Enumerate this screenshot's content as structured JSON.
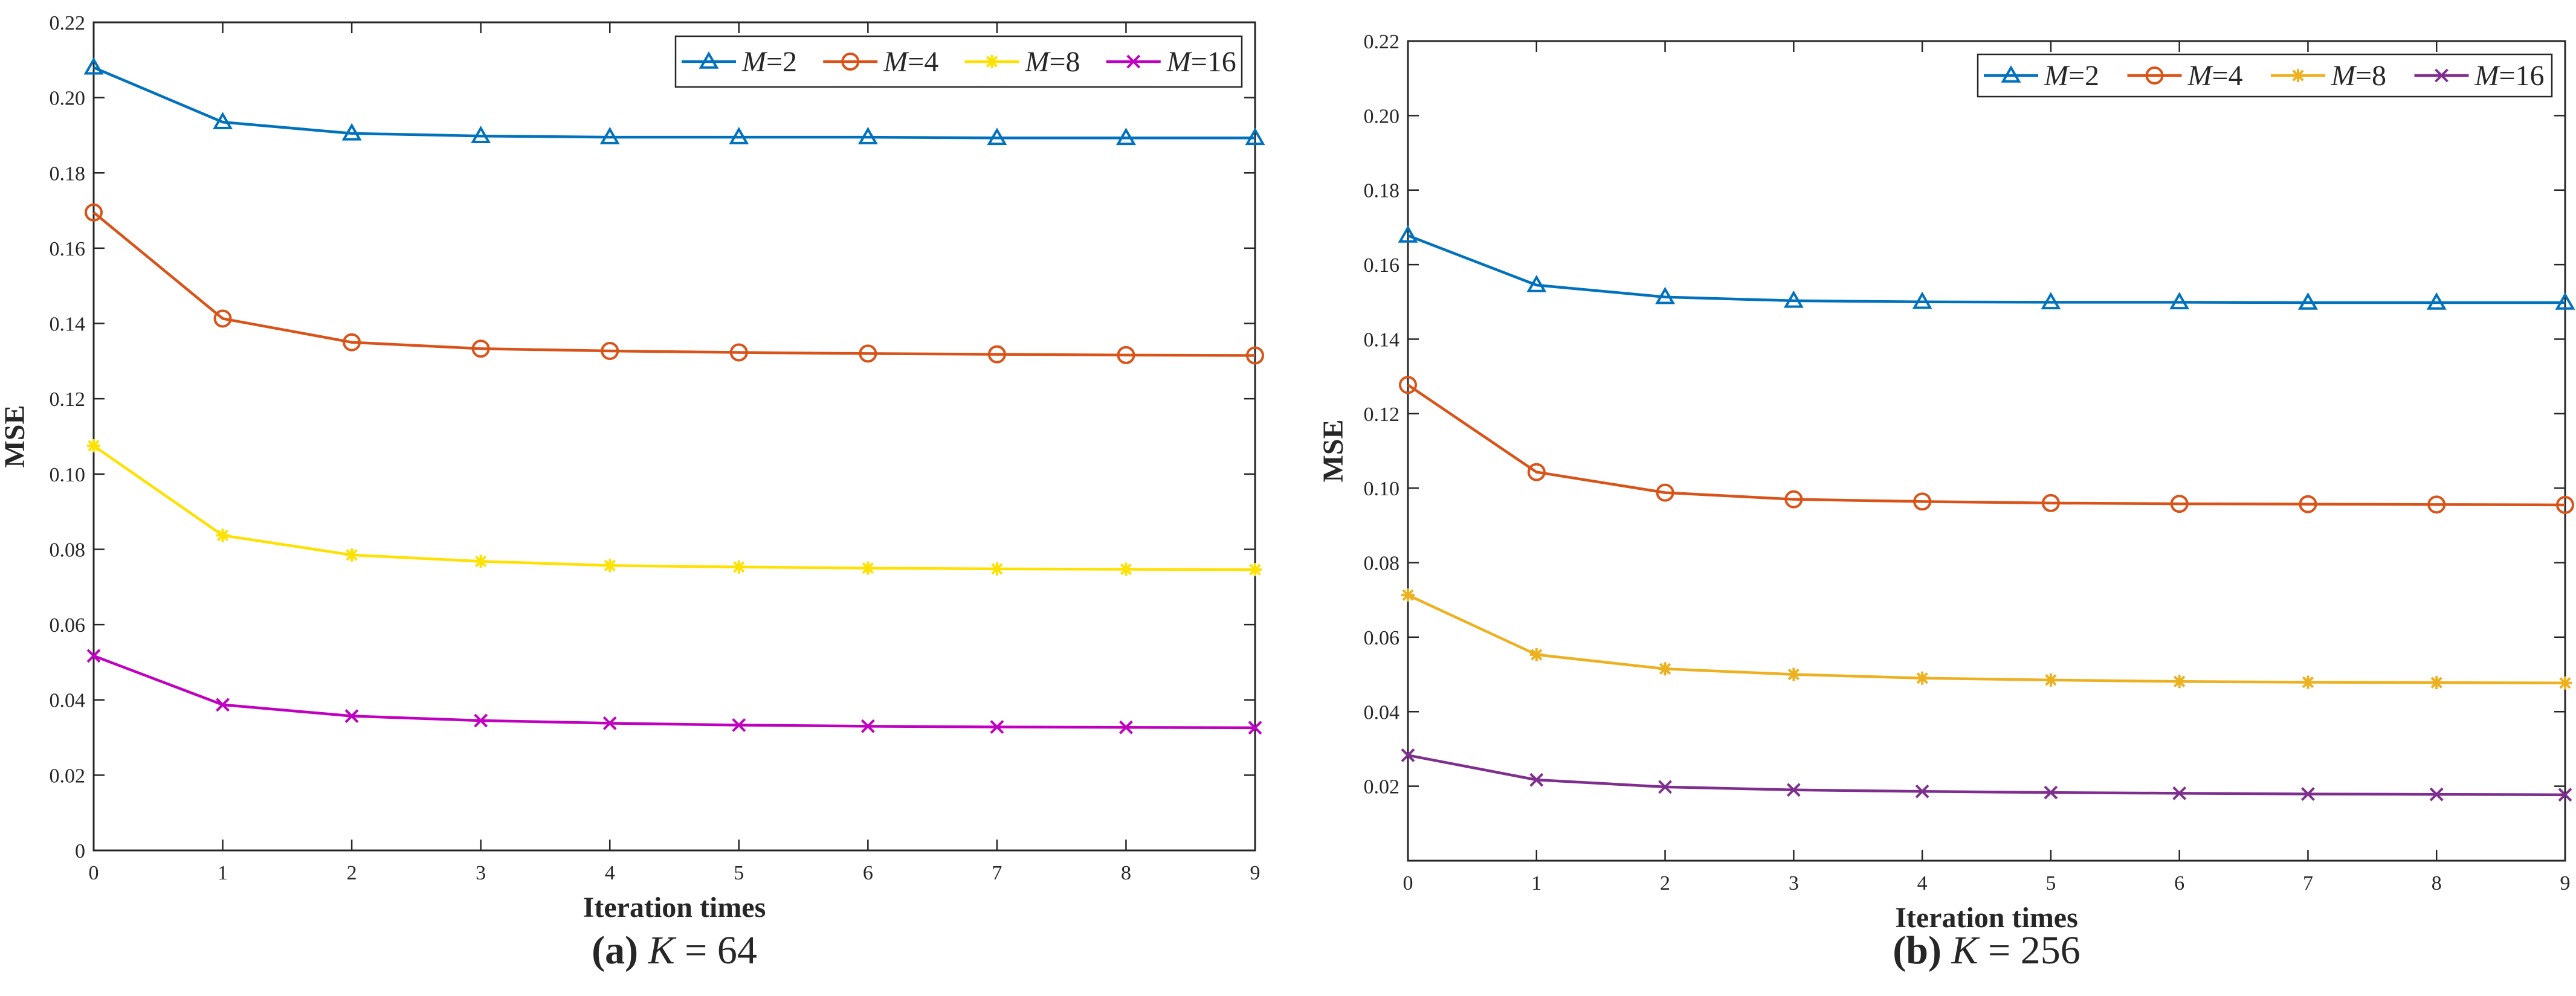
{
  "chart_data": [
    {
      "type": "line",
      "xlabel": "Iteration times",
      "ylabel": "MSE",
      "xlim": [
        0,
        9
      ],
      "ylim": [
        0,
        0.22
      ],
      "xticks": [
        0,
        1,
        2,
        3,
        4,
        5,
        6,
        7,
        8,
        9
      ],
      "yticks": [
        0,
        0.02,
        0.04,
        0.06,
        0.08,
        0.1,
        0.12,
        0.14,
        0.16,
        0.18,
        0.2,
        0.22
      ],
      "ytick_labels": [
        "0",
        "0.02",
        "0.04",
        "0.06",
        "0.08",
        "0.10",
        "0.12",
        "0.14",
        "0.16",
        "0.18",
        "0.20",
        "0.22"
      ],
      "legend_position": "top-right",
      "caption": {
        "letter": "(a)",
        "variable": "K",
        "rest": " = 64"
      },
      "x": [
        0,
        1,
        2,
        3,
        4,
        5,
        6,
        7,
        8,
        9
      ],
      "series": [
        {
          "name": "=2",
          "legend_italic": "M",
          "color": "#0072BD",
          "marker": "triangle",
          "values": [
            0.208,
            0.1935,
            0.1905,
            0.1898,
            0.1895,
            0.1895,
            0.1895,
            0.1893,
            0.1893,
            0.1893
          ]
        },
        {
          "name": "=4",
          "legend_italic": "M",
          "color": "#D95319",
          "marker": "circle",
          "values": [
            0.1695,
            0.1413,
            0.135,
            0.1333,
            0.1327,
            0.1323,
            0.132,
            0.1318,
            0.1316,
            0.1315
          ]
        },
        {
          "name": "=8",
          "legend_italic": "M",
          "color": "#FFE100",
          "marker": "asterisk",
          "values": [
            0.1075,
            0.0837,
            0.0785,
            0.0768,
            0.0757,
            0.0753,
            0.075,
            0.0748,
            0.0747,
            0.0746
          ]
        },
        {
          "name": "=16",
          "legend_italic": "M",
          "color": "#C000C0",
          "marker": "x",
          "values": [
            0.0517,
            0.0387,
            0.0357,
            0.0345,
            0.0338,
            0.0333,
            0.033,
            0.0328,
            0.0327,
            0.0326
          ]
        }
      ]
    },
    {
      "type": "line",
      "xlabel": "Iteration times",
      "ylabel": "MSE",
      "xlim": [
        0,
        9
      ],
      "ylim": [
        0,
        0.22
      ],
      "xticks": [
        0,
        1,
        2,
        3,
        4,
        5,
        6,
        7,
        8,
        9
      ],
      "yticks": [
        0.02,
        0.04,
        0.06,
        0.08,
        0.1,
        0.12,
        0.14,
        0.16,
        0.18,
        0.2,
        0.22
      ],
      "ytick_labels": [
        "0.02",
        "0.04",
        "0.06",
        "0.08",
        "0.10",
        "0.12",
        "0.14",
        "0.16",
        "0.18",
        "0.20",
        "0.22"
      ],
      "legend_position": "top-right",
      "caption": {
        "letter": "(b)",
        "variable": "K",
        "rest": " = 256"
      },
      "x": [
        0,
        1,
        2,
        3,
        4,
        5,
        6,
        7,
        8,
        9
      ],
      "series": [
        {
          "name": "=2",
          "legend_italic": "M",
          "color": "#0072BD",
          "marker": "triangle",
          "values": [
            0.1678,
            0.1545,
            0.1513,
            0.1503,
            0.15,
            0.1499,
            0.1499,
            0.1498,
            0.1498,
            0.1498
          ]
        },
        {
          "name": "=4",
          "legend_italic": "M",
          "color": "#D95319",
          "marker": "circle",
          "values": [
            0.1277,
            0.1043,
            0.0988,
            0.097,
            0.0964,
            0.096,
            0.0958,
            0.0957,
            0.0956,
            0.0955
          ]
        },
        {
          "name": "=8",
          "legend_italic": "M",
          "color": "#EDB120",
          "marker": "asterisk",
          "values": [
            0.0713,
            0.0553,
            0.0515,
            0.05,
            0.049,
            0.0485,
            0.0481,
            0.0479,
            0.0478,
            0.0477
          ]
        },
        {
          "name": "=16",
          "legend_italic": "M",
          "color": "#7E2F8E",
          "marker": "x",
          "values": [
            0.0283,
            0.0217,
            0.0198,
            0.019,
            0.0186,
            0.0183,
            0.0181,
            0.0179,
            0.0178,
            0.0177
          ]
        }
      ]
    }
  ]
}
